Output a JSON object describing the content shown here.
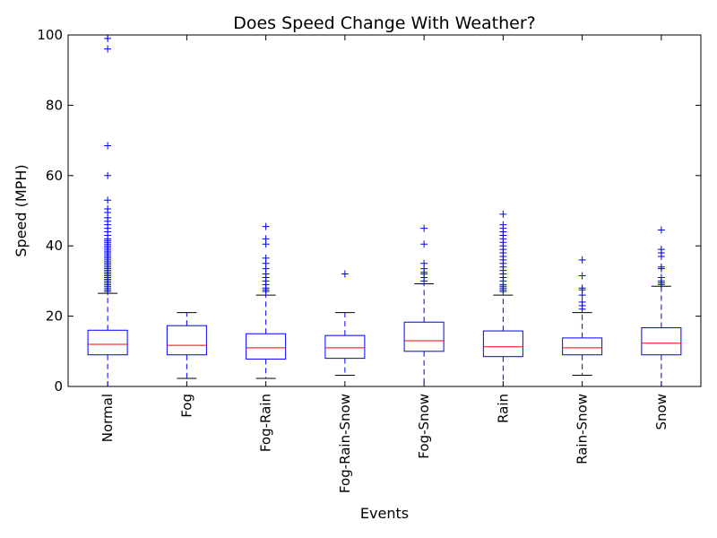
{
  "chart_data": {
    "type": "box",
    "title": "Does Speed Change With Weather?",
    "xlabel": "Events",
    "ylabel": "Speed (MPH)",
    "ylim": [
      0,
      100
    ],
    "yticks": [
      0,
      20,
      40,
      60,
      80,
      100
    ],
    "grid": false,
    "colors": {
      "box": "#0000ff",
      "median": "#ff0000",
      "cap": "#000000",
      "flier": "#0000ff"
    },
    "categories": [
      "Normal",
      "Fog",
      "Fog-Rain",
      "Fog-Rain-Snow",
      "Fog-Snow",
      "Rain",
      "Rain-Snow",
      "Snow"
    ],
    "boxes": [
      {
        "category": "Normal",
        "whisker_low": 0,
        "q1": 9,
        "median": 12,
        "q3": 16,
        "whisker_high": 26.5,
        "fliers": [
          27,
          27.5,
          28,
          28.5,
          29,
          29.5,
          30,
          30.5,
          31,
          31.5,
          32,
          32.5,
          33,
          33.5,
          34,
          34.5,
          35,
          35.5,
          36,
          36.5,
          37,
          37.5,
          38,
          38.5,
          39,
          39.5,
          40,
          40.5,
          41,
          41.5,
          42,
          43,
          44,
          45,
          46,
          47,
          48,
          49.5,
          50.5,
          53,
          60,
          68.5,
          96,
          99
        ]
      },
      {
        "category": "Fog",
        "whisker_low": 2.3,
        "q1": 9,
        "median": 11.7,
        "q3": 17.3,
        "whisker_high": 21,
        "fliers": []
      },
      {
        "category": "Fog-Rain",
        "whisker_low": 2.3,
        "q1": 7.8,
        "median": 11,
        "q3": 15,
        "whisker_high": 26,
        "fliers": [
          27,
          27.5,
          28,
          29,
          30,
          31,
          32,
          33.5,
          35,
          36.5,
          40.5,
          42,
          45.5
        ]
      },
      {
        "category": "Fog-Rain-Snow",
        "whisker_low": 3.2,
        "q1": 8,
        "median": 11,
        "q3": 14.5,
        "whisker_high": 21,
        "fliers": [
          32
        ]
      },
      {
        "category": "Fog-Snow",
        "whisker_low": 0,
        "q1": 10,
        "median": 13,
        "q3": 18.3,
        "whisker_high": 29.2,
        "fliers": [
          30,
          31,
          32,
          32.5,
          33.5,
          35,
          40.5,
          45
        ]
      },
      {
        "category": "Rain",
        "whisker_low": 0,
        "q1": 8.5,
        "median": 11.3,
        "q3": 15.8,
        "whisker_high": 26,
        "fliers": [
          27,
          27.5,
          28,
          28.5,
          29,
          30,
          31,
          32,
          33,
          34,
          35,
          36,
          37,
          38,
          39,
          40,
          41,
          42,
          43,
          44,
          45,
          46,
          49
        ]
      },
      {
        "category": "Rain-Snow",
        "whisker_low": 3.2,
        "q1": 9,
        "median": 11,
        "q3": 13.8,
        "whisker_high": 21,
        "fliers": [
          22,
          23,
          24,
          26,
          27.5,
          28,
          31.5,
          36
        ]
      },
      {
        "category": "Snow",
        "whisker_low": 0,
        "q1": 9,
        "median": 12.3,
        "q3": 16.7,
        "whisker_high": 28.5,
        "fliers": [
          29,
          29.5,
          30,
          31,
          33.5,
          34,
          37,
          38,
          39,
          44.5
        ]
      }
    ]
  }
}
